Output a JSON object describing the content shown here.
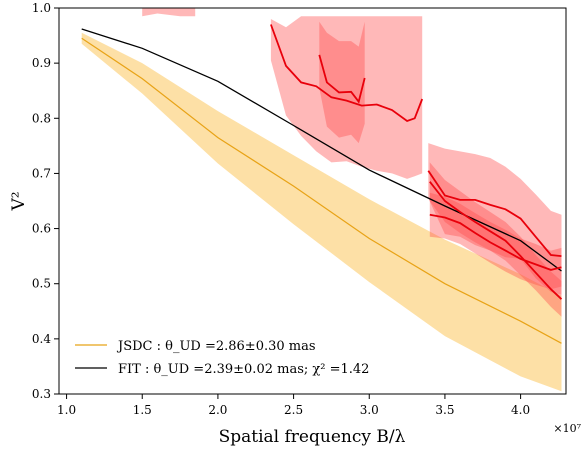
{
  "chart_data": {
    "type": "line",
    "xlabel": "Spatial frequency B/λ",
    "ylabel": "V²",
    "x_offset_label": "×10⁷",
    "x_scale_factor": 10000000,
    "xlim": [
      9500000.0,
      43000000.0
    ],
    "ylim": [
      0.3,
      1.0
    ],
    "x_ticks": [
      10000000.0,
      15000000.0,
      20000000.0,
      25000000.0,
      30000000.0,
      35000000.0,
      40000000.0
    ],
    "x_tick_labels": [
      "1.0",
      "1.5",
      "2.0",
      "2.5",
      "3.0",
      "3.5",
      "4.0"
    ],
    "y_ticks": [
      0.3,
      0.4,
      0.5,
      0.6,
      0.7,
      0.8,
      0.9,
      1.0
    ],
    "y_tick_labels": [
      "0.3",
      "0.4",
      "0.5",
      "0.6",
      "0.7",
      "0.8",
      "0.9",
      "1.0"
    ],
    "grid": false,
    "legend": {
      "placement": "lower-left",
      "entries": [
        {
          "label": "JSDC : θ_UD =2.86±0.30 mas",
          "color": "#e8a317"
        },
        {
          "label": "FIT : θ_UD =2.39±0.02 mas; χ² =1.42",
          "color": "#000000"
        }
      ]
    },
    "colors": {
      "jsdc_line": "#e8a317",
      "jsdc_band": "#fde0a6",
      "fit_line": "#000000",
      "obs_line": "#e8000b",
      "obs_band": "#ff4d4d"
    },
    "series": [
      {
        "name": "JSDC : θ_UD =2.86±0.30 mas",
        "kind": "model-band",
        "x": [
          11000000.0,
          15000000.0,
          20000000.0,
          25000000.0,
          30000000.0,
          35000000.0,
          40000000.0,
          42700000.0
        ],
        "y": [
          0.945,
          0.872,
          0.765,
          0.677,
          0.582,
          0.5,
          0.432,
          0.392
        ],
        "upper": [
          0.955,
          0.9,
          0.813,
          0.733,
          0.653,
          0.58,
          0.517,
          0.478
        ],
        "lower": [
          0.935,
          0.845,
          0.718,
          0.608,
          0.503,
          0.405,
          0.332,
          0.305
        ]
      },
      {
        "name": "FIT : θ_UD =2.39±0.02 mas; χ² =1.42",
        "kind": "model-line",
        "x": [
          11000000.0,
          15000000.0,
          20000000.0,
          25000000.0,
          30000000.0,
          35000000.0,
          40000000.0,
          42700000.0
        ],
        "y": [
          0.962,
          0.927,
          0.867,
          0.787,
          0.706,
          0.641,
          0.578,
          0.523
        ]
      },
      {
        "kind": "observation",
        "x": [
          15000000.0,
          16000000.0,
          17500000.0,
          18500000.0
        ],
        "y": [
          1.05,
          1.04,
          1.05,
          1.04
        ],
        "upper": [
          1.2,
          1.2,
          1.2,
          1.2
        ],
        "lower": [
          0.985,
          0.99,
          0.985,
          0.985
        ]
      },
      {
        "kind": "observation",
        "x": [
          23500000.0,
          24500000.0,
          25500000.0,
          26500000.0,
          27500000.0,
          28500000.0,
          29500000.0,
          30500000.0,
          31500000.0,
          32500000.0,
          33000000.0,
          33500000.0
        ],
        "y": [
          0.97,
          0.895,
          0.865,
          0.858,
          0.838,
          0.832,
          0.823,
          0.825,
          0.815,
          0.795,
          0.8,
          0.835
        ],
        "upper": [
          0.98,
          0.965,
          0.985,
          0.985,
          0.985,
          0.985,
          0.985,
          0.985,
          0.985,
          0.985,
          0.985,
          0.985
        ],
        "lower": [
          0.905,
          0.805,
          0.768,
          0.74,
          0.72,
          0.722,
          0.712,
          0.705,
          0.7,
          0.69,
          0.695,
          0.7
        ]
      },
      {
        "kind": "observation",
        "x": [
          26700000.0,
          27200000.0,
          28000000.0,
          28800000.0,
          29300000.0,
          29700000.0
        ],
        "y": [
          0.915,
          0.865,
          0.847,
          0.848,
          0.83,
          0.873
        ],
        "upper": [
          0.975,
          0.955,
          0.94,
          0.94,
          0.93,
          0.975
        ],
        "lower": [
          0.855,
          0.785,
          0.765,
          0.77,
          0.755,
          0.79
        ]
      },
      {
        "kind": "observation",
        "x": [
          33900000.0,
          35000000.0,
          36000000.0,
          37000000.0,
          38000000.0,
          39000000.0,
          40000000.0,
          41000000.0,
          42000000.0,
          42700000.0
        ],
        "y": [
          0.705,
          0.66,
          0.652,
          0.652,
          0.643,
          0.635,
          0.618,
          0.585,
          0.552,
          0.55
        ],
        "upper": [
          0.755,
          0.745,
          0.74,
          0.735,
          0.728,
          0.712,
          0.69,
          0.662,
          0.632,
          0.625
        ],
        "lower": [
          0.655,
          0.59,
          0.585,
          0.57,
          0.56,
          0.548,
          0.545,
          0.51,
          0.485,
          0.48
        ]
      },
      {
        "kind": "observation",
        "x": [
          34000000.0,
          35000000.0,
          36000000.0,
          37000000.0,
          38000000.0,
          39000000.0,
          40000000.0,
          41000000.0,
          42000000.0,
          42700000.0
        ],
        "y": [
          0.625,
          0.62,
          0.61,
          0.592,
          0.575,
          0.56,
          0.545,
          0.535,
          0.525,
          0.53
        ],
        "upper": [
          0.665,
          0.658,
          0.645,
          0.628,
          0.612,
          0.598,
          0.582,
          0.572,
          0.56,
          0.565
        ],
        "lower": [
          0.585,
          0.582,
          0.572,
          0.555,
          0.538,
          0.522,
          0.508,
          0.498,
          0.49,
          0.495
        ]
      },
      {
        "kind": "observation",
        "x": [
          34000000.0,
          35000000.0,
          36000000.0,
          37000000.0,
          38000000.0,
          39000000.0,
          40000000.0,
          41000000.0,
          42000000.0,
          42700000.0
        ],
        "y": [
          0.685,
          0.65,
          0.63,
          0.612,
          0.595,
          0.578,
          0.55,
          0.52,
          0.49,
          0.472
        ],
        "upper": [
          0.72,
          0.688,
          0.668,
          0.648,
          0.63,
          0.612,
          0.585,
          0.552,
          0.522,
          0.505
        ],
        "lower": [
          0.65,
          0.612,
          0.592,
          0.575,
          0.56,
          0.542,
          0.515,
          0.488,
          0.458,
          0.44
        ]
      }
    ]
  }
}
